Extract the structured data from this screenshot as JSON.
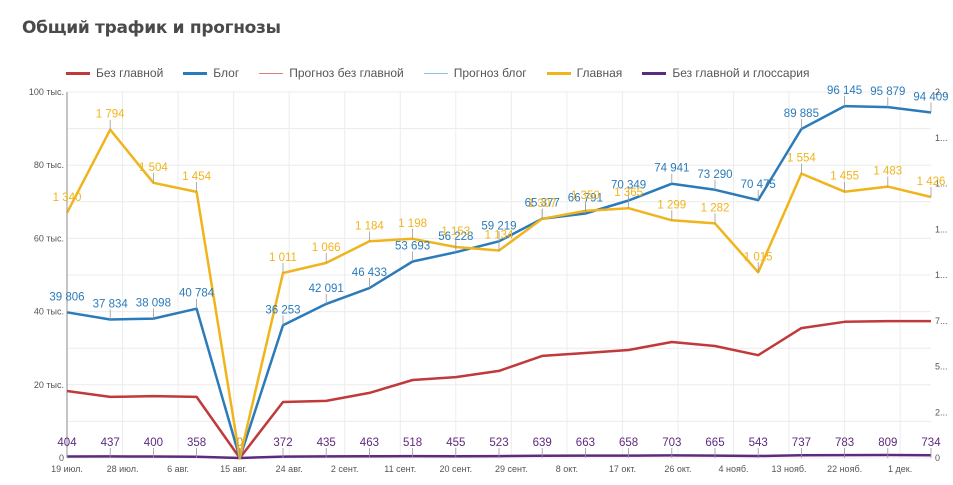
{
  "title": "Общий трафик и прогнозы",
  "legend": [
    {
      "name": "Без главной",
      "color": "#c0393b",
      "thick": true
    },
    {
      "name": "Блог",
      "color": "#2b7bba",
      "thick": true
    },
    {
      "name": "Прогноз без главной",
      "color": "#d98080",
      "thick": false
    },
    {
      "name": "Прогноз блог",
      "color": "#8fbedf",
      "thick": false
    },
    {
      "name": "Главная",
      "color": "#f0b41c",
      "thick": true
    },
    {
      "name": "Без главной и глоссария",
      "color": "#5e2a7e",
      "thick": true
    }
  ],
  "chart_data": {
    "type": "line",
    "title": "Общий трафик и прогнозы",
    "x_tick_labels": [
      "19 июл.",
      "28 июл.",
      "6 авг.",
      "15 авг.",
      "24 авг.",
      "2 сент.",
      "11 сент.",
      "20 сент.",
      "29 сент.",
      "8 окт.",
      "17 окт.",
      "26 окт.",
      "4 нояб.",
      "13 нояб.",
      "22 нояб.",
      "1 дек."
    ],
    "left_axis": {
      "ticks": [
        "0",
        "20 тыс.",
        "40 тыс.",
        "60 тыс.",
        "80 тыс.",
        "100 тыс."
      ],
      "range": [
        0,
        100000
      ]
    },
    "right_axis": {
      "ticks": [
        "0",
        "2...",
        "5...",
        "7...",
        "1...",
        "1...",
        "1...",
        "1...",
        "2..."
      ],
      "range": [
        0,
        2000
      ]
    },
    "grid": true,
    "legend_position": "top",
    "series": [
      {
        "name": "Без главной",
        "axis": "left",
        "color": "#c0393b",
        "labeled": false,
        "values": [
          18300,
          16700,
          16900,
          16700,
          0,
          15300,
          15600,
          17800,
          21300,
          22100,
          23800,
          27900,
          28700,
          29500,
          31700,
          30600,
          28100,
          35500,
          37200,
          37400,
          37400
        ]
      },
      {
        "name": "Блог",
        "axis": "left",
        "color": "#2b7bba",
        "labeled": true,
        "values": [
          39806,
          37834,
          38098,
          40784,
          0,
          36253,
          42091,
          46433,
          53693,
          56228,
          59219,
          65377,
          66791,
          70349,
          74941,
          73290,
          70475,
          89885,
          96145,
          95879,
          94409
        ],
        "labels": [
          "39 806",
          "37 834",
          "38 098",
          "40 784",
          "0",
          "36 253",
          "42 091",
          "46 433",
          "53 693",
          "56 228",
          "59 219",
          "65 377",
          "66 791",
          "70 349",
          "74 941",
          "73 290",
          "70 475",
          "89 885",
          "96 145",
          "95 879",
          "94 409"
        ]
      },
      {
        "name": "Главная",
        "axis": "right",
        "color": "#f0b41c",
        "labeled": true,
        "values": [
          1340,
          1794,
          1504,
          1454,
          0,
          1011,
          1066,
          1184,
          1198,
          1153,
          1134,
          1307,
          1350,
          1365,
          1299,
          1282,
          1015,
          1554,
          1455,
          1483,
          1426
        ],
        "labels": [
          "1 340",
          "1 794",
          "1 504",
          "1 454",
          "0",
          "1 011",
          "1 066",
          "1 184",
          "1 198",
          "1 153",
          "1 134",
          "1 307",
          "1 350",
          "1 365",
          "1 299",
          "1 282",
          "1 015",
          "1 554",
          "1 455",
          "1 483",
          "1 426"
        ]
      },
      {
        "name": "Без главной и глоссария",
        "axis": "left",
        "color": "#5e2a7e",
        "labeled": true,
        "values": [
          404,
          437,
          400,
          358,
          0,
          372,
          435,
          463,
          518,
          455,
          523,
          639,
          663,
          658,
          703,
          665,
          543,
          737,
          783,
          809,
          734
        ],
        "labels": [
          "404",
          "437",
          "400",
          "358",
          "0",
          "372",
          "435",
          "463",
          "518",
          "455",
          "523",
          "639",
          "663",
          "658",
          "703",
          "665",
          "543",
          "737",
          "783",
          "809",
          "734"
        ]
      }
    ]
  }
}
